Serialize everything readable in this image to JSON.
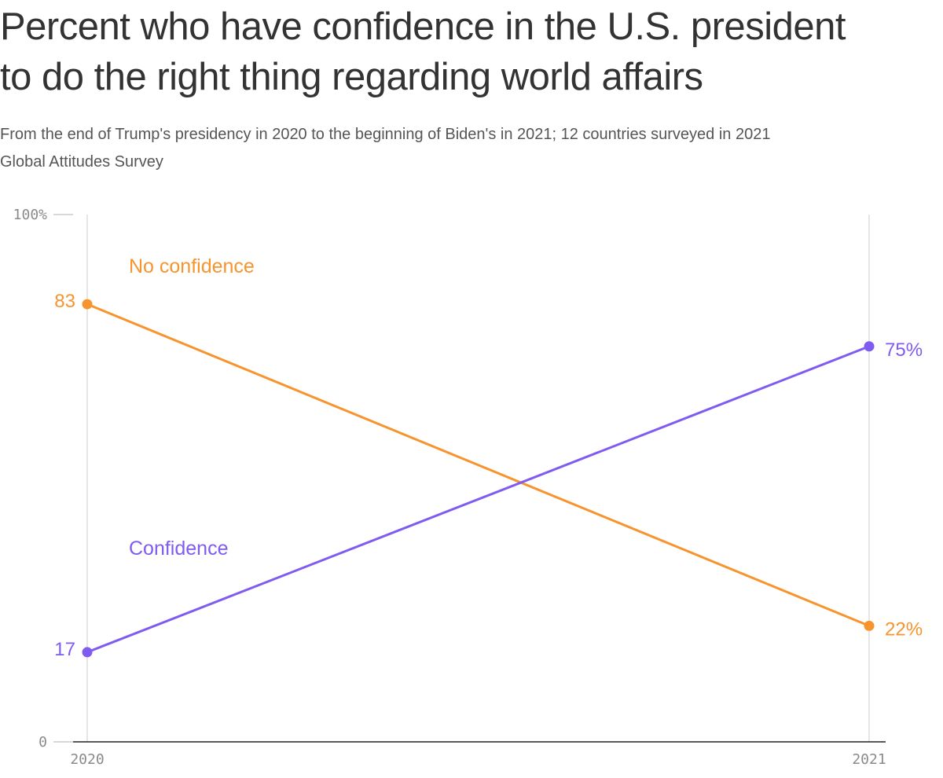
{
  "chart_data": {
    "type": "line",
    "title_lines": [
      "Percent who have confidence in the U.S. president",
      "to do the right thing regarding world affairs"
    ],
    "subtitle_lines": [
      "From the end of Trump's presidency in 2020 to the beginning of Biden's in 2021; 12 countries surveyed in 2021",
      "Global Attitudes Survey"
    ],
    "x": [
      "2020",
      "2021"
    ],
    "ylim": [
      0,
      100
    ],
    "y_ticks": [
      {
        "value": 0,
        "label": "0"
      },
      {
        "value": 100,
        "label": "100%"
      }
    ],
    "grid": "vertical",
    "series": [
      {
        "key": "no_confidence",
        "name": "No confidence",
        "color": "#F7942E",
        "label_color": "#F7942E",
        "values": [
          83,
          22
        ],
        "start_label": "83",
        "end_label": "22%"
      },
      {
        "key": "confidence",
        "name": "Confidence",
        "color": "#7F5BF0",
        "label_color": "#7F5BF0",
        "values": [
          17,
          75
        ],
        "start_label": "17",
        "end_label": "75%"
      }
    ]
  }
}
